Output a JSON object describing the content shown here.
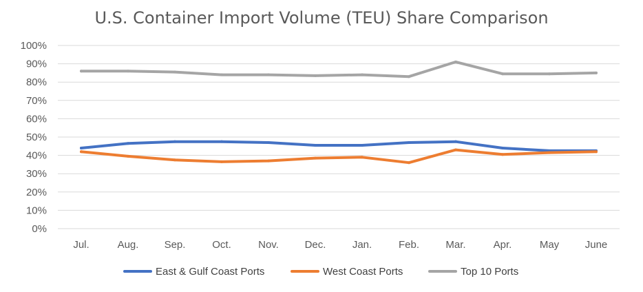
{
  "chart_data": {
    "type": "line",
    "title": "U.S. Container Import Volume (TEU) Share Comparison",
    "xlabel": "",
    "ylabel": "",
    "categories": [
      "Jul.",
      "Aug.",
      "Sep.",
      "Oct.",
      "Nov.",
      "Dec.",
      "Jan.",
      "Feb.",
      "Mar.",
      "Apr.",
      "May",
      "June"
    ],
    "ylim": [
      0,
      100
    ],
    "yticks": [
      "0%",
      "10%",
      "20%",
      "30%",
      "40%",
      "50%",
      "60%",
      "70%",
      "80%",
      "90%",
      "100%"
    ],
    "grid": true,
    "legend_position": "bottom",
    "series": [
      {
        "name": "East & Gulf Coast Ports",
        "color": "#4472c4",
        "values": [
          44,
          46.5,
          47.5,
          47.5,
          47,
          45.5,
          45.5,
          47,
          47.5,
          44,
          42.5,
          42.5
        ]
      },
      {
        "name": "West Coast Ports",
        "color": "#ed7d31",
        "values": [
          42,
          39.5,
          37.5,
          36.5,
          37,
          38.5,
          39,
          36,
          43,
          40.5,
          41.5,
          42
        ]
      },
      {
        "name": "Top 10 Ports",
        "color": "#a5a5a5",
        "values": [
          86,
          86,
          85.5,
          84,
          84,
          83.5,
          84,
          83,
          91,
          84.5,
          84.5,
          85
        ]
      }
    ]
  }
}
